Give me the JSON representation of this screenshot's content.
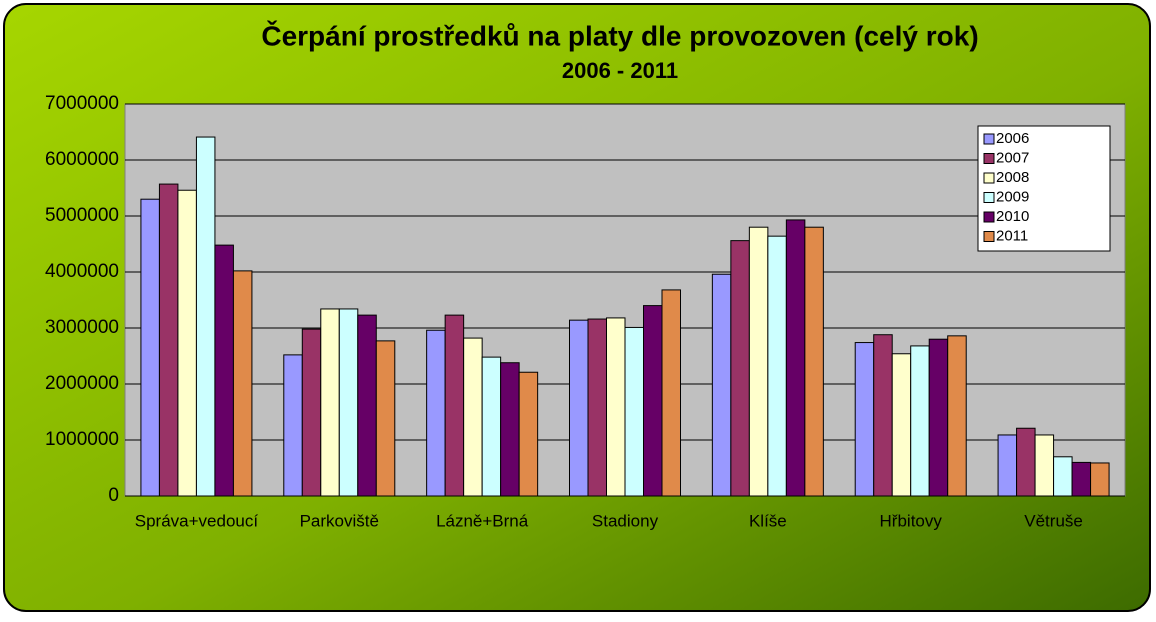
{
  "chart_data": {
    "type": "bar",
    "title": "Čerpání prostředků na platy dle provozoven (celý rok)",
    "subtitle": "2006 - 2011",
    "categories": [
      "Správa+vedoucí",
      "Parkoviště",
      "Lázně+Brná",
      "Stadiony",
      "Klíše",
      "Hřbitovy",
      "Větruše"
    ],
    "series": [
      {
        "name": "2006",
        "color": "#9999ff",
        "values": [
          5300000,
          2520000,
          2960000,
          3140000,
          3960000,
          2740000,
          1090000
        ]
      },
      {
        "name": "2007",
        "color": "#993366",
        "values": [
          5570000,
          2980000,
          3230000,
          3160000,
          4560000,
          2880000,
          1210000
        ]
      },
      {
        "name": "2008",
        "color": "#ffffcc",
        "values": [
          5460000,
          3340000,
          2820000,
          3180000,
          4800000,
          2540000,
          1090000
        ]
      },
      {
        "name": "2009",
        "color": "#ccffff",
        "values": [
          6410000,
          3340000,
          2480000,
          3010000,
          4640000,
          2680000,
          700000
        ]
      },
      {
        "name": "2010",
        "color": "#660066",
        "values": [
          4480000,
          3230000,
          2380000,
          3400000,
          4930000,
          2800000,
          600000
        ]
      },
      {
        "name": "2011",
        "color": "#e08a4a",
        "values": [
          4020000,
          2770000,
          2210000,
          3680000,
          4800000,
          2860000,
          590000
        ]
      }
    ],
    "ylim": [
      0,
      7000000
    ],
    "yticks": [
      0,
      1000000,
      2000000,
      3000000,
      4000000,
      5000000,
      6000000,
      7000000
    ],
    "grid": true,
    "legend": "top-right"
  }
}
